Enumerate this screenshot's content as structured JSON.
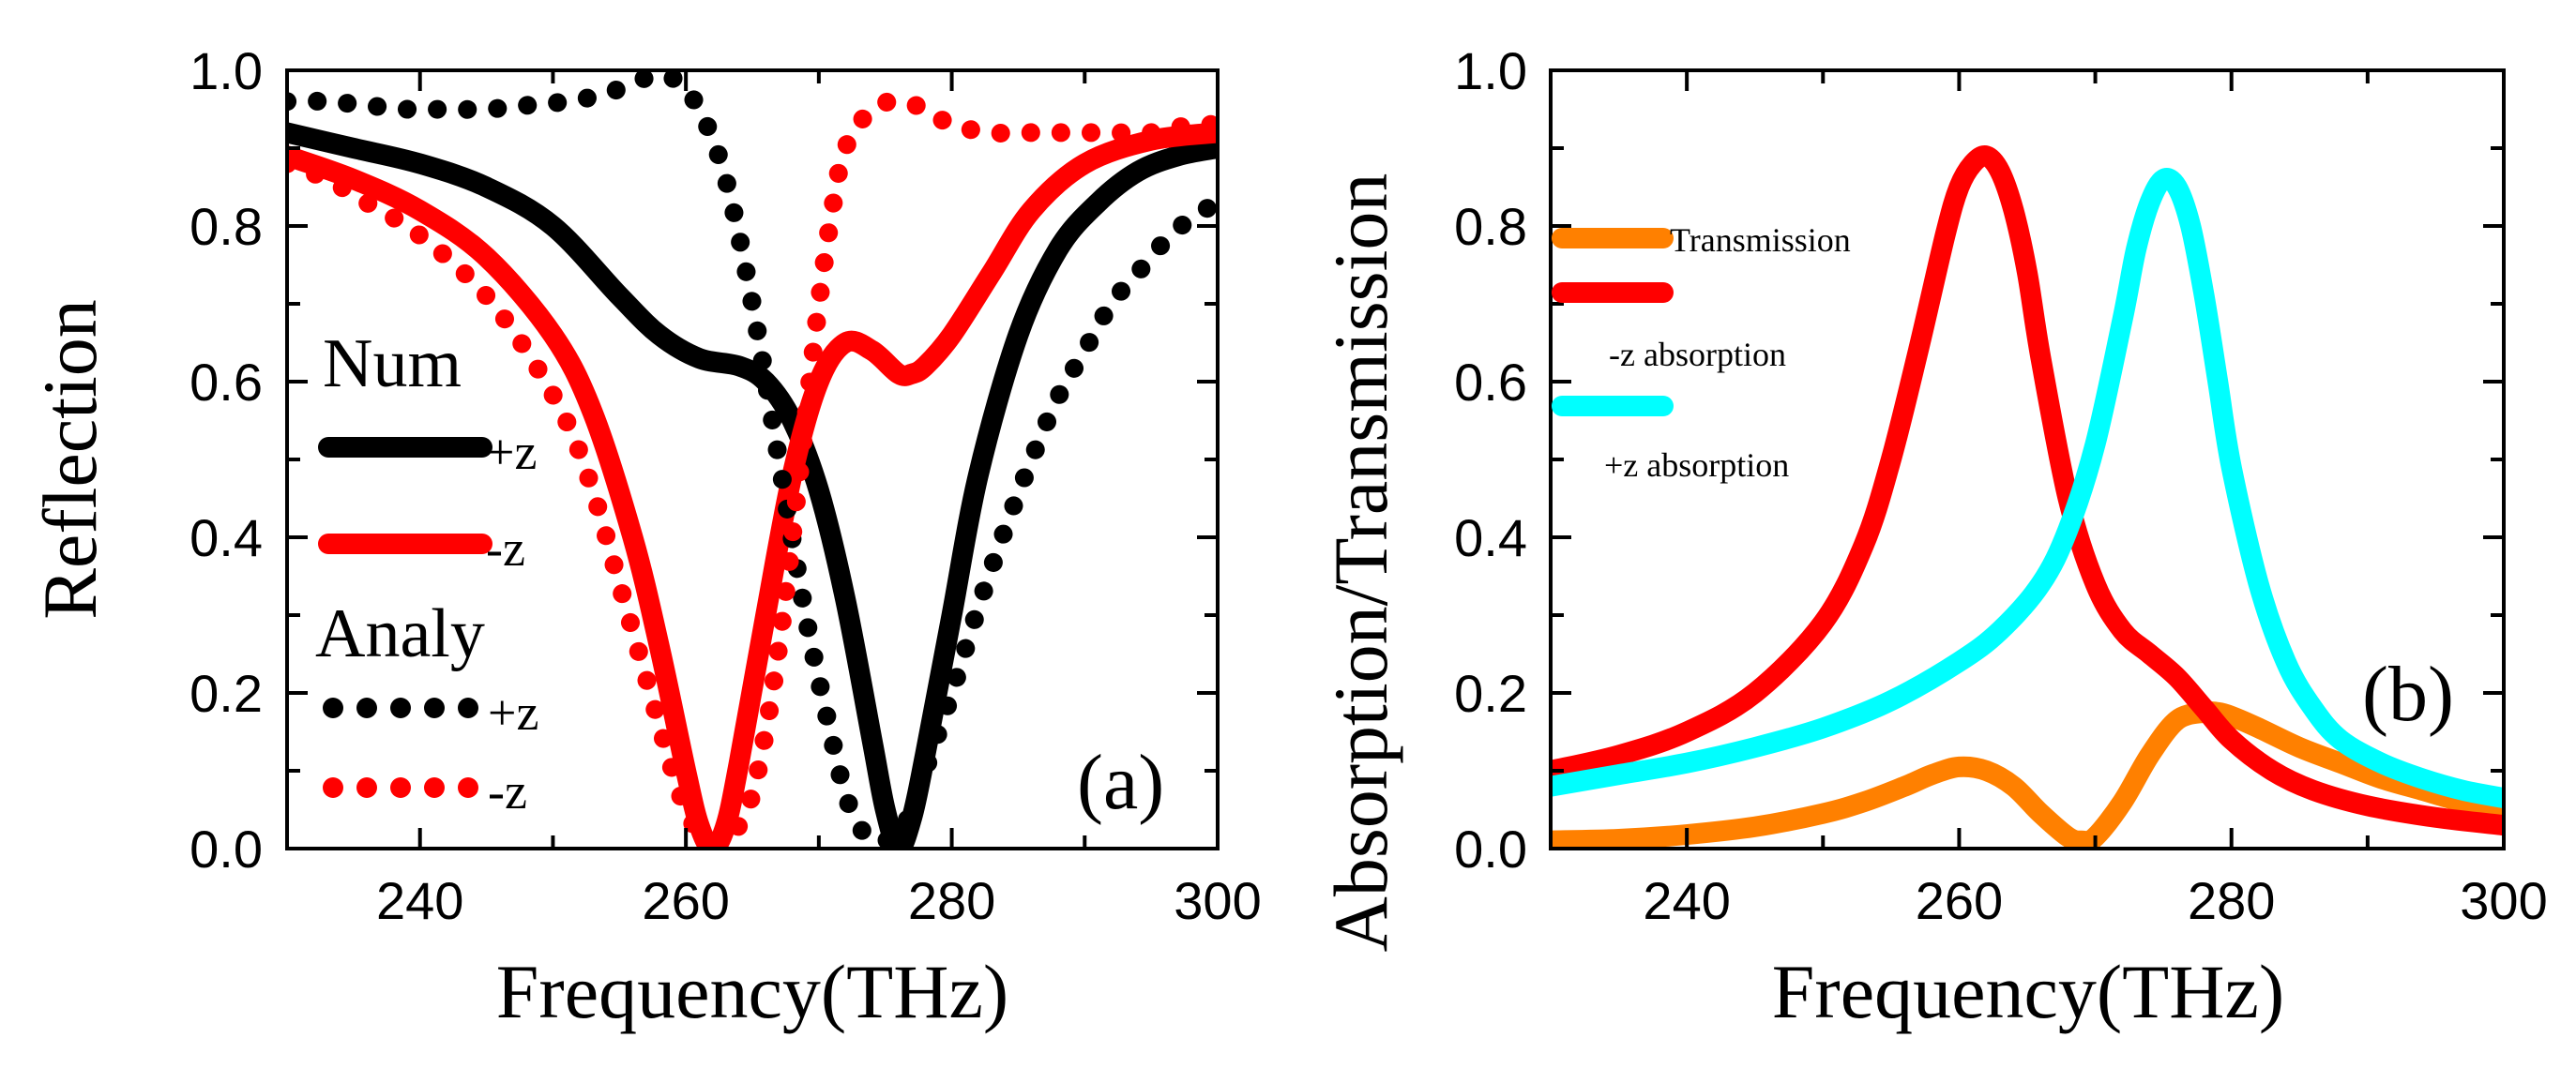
{
  "chart_data": [
    {
      "panel_label": "(a)",
      "type": "line",
      "xlabel": "Frequency(THz)",
      "ylabel": "Reflection",
      "xlim": [
        230,
        300
      ],
      "ylim": [
        0,
        1
      ],
      "xticks": [
        "240",
        "260",
        "280",
        "300"
      ],
      "yticks": [
        "0.0",
        "0.2",
        "0.4",
        "0.6",
        "0.8",
        "1.0"
      ],
      "legend": {
        "group1_title": "Num",
        "group2_title": "Analy",
        "entries": [
          "+z",
          "-z",
          "+z",
          "-z"
        ]
      },
      "series": [
        {
          "name": "Num +z",
          "style": "solid",
          "color": "#000000",
          "x": [
            230,
            235,
            240,
            245,
            250,
            255,
            258,
            261,
            264,
            266,
            268,
            270,
            272,
            274,
            275,
            276,
            277,
            278,
            280,
            282,
            285,
            288,
            291,
            294,
            297,
            300
          ],
          "y": [
            0.92,
            0.9,
            0.88,
            0.85,
            0.8,
            0.71,
            0.66,
            0.63,
            0.62,
            0.6,
            0.55,
            0.46,
            0.32,
            0.14,
            0.05,
            0.0,
            0.04,
            0.12,
            0.3,
            0.48,
            0.66,
            0.77,
            0.83,
            0.87,
            0.89,
            0.9
          ]
        },
        {
          "name": "Num -z",
          "style": "solid",
          "color": "#ff0000",
          "x": [
            230,
            235,
            240,
            245,
            250,
            253,
            256,
            258,
            260,
            261,
            262,
            263,
            264,
            266,
            268,
            270,
            272,
            274,
            276,
            277,
            278,
            280,
            283,
            286,
            290,
            295,
            300
          ],
          "y": [
            0.89,
            0.86,
            0.82,
            0.76,
            0.66,
            0.56,
            0.4,
            0.26,
            0.1,
            0.03,
            0.0,
            0.03,
            0.11,
            0.3,
            0.48,
            0.6,
            0.65,
            0.64,
            0.61,
            0.61,
            0.62,
            0.66,
            0.74,
            0.82,
            0.88,
            0.91,
            0.92
          ]
        },
        {
          "name": "Analy +z",
          "style": "dotted",
          "color": "#000000",
          "x": [
            230,
            233,
            236,
            239,
            242,
            245,
            248,
            251,
            254,
            257,
            259,
            261,
            263,
            265,
            267,
            269,
            271,
            272,
            273,
            274,
            275,
            276,
            277,
            278,
            280,
            282,
            284,
            286,
            288,
            290,
            292,
            294,
            296,
            298,
            300
          ],
          "y": [
            0.96,
            0.96,
            0.955,
            0.95,
            0.95,
            0.95,
            0.955,
            0.96,
            0.97,
            0.99,
            0.99,
            0.95,
            0.86,
            0.7,
            0.5,
            0.3,
            0.14,
            0.07,
            0.03,
            0.01,
            0.01,
            0.02,
            0.05,
            0.1,
            0.2,
            0.31,
            0.41,
            0.5,
            0.58,
            0.64,
            0.7,
            0.74,
            0.78,
            0.81,
            0.83
          ]
        },
        {
          "name": "Analy -z",
          "style": "dotted",
          "color": "#ff0000",
          "x": [
            230,
            233,
            236,
            239,
            242,
            245,
            248,
            251,
            253,
            255,
            257,
            259,
            260,
            261,
            262,
            263,
            264,
            265,
            266,
            267,
            268,
            269,
            270,
            271,
            272,
            274,
            276,
            278,
            280,
            283,
            286,
            289,
            292,
            295,
            298,
            300
          ],
          "y": [
            0.88,
            0.86,
            0.83,
            0.8,
            0.76,
            0.71,
            0.64,
            0.55,
            0.46,
            0.34,
            0.22,
            0.1,
            0.05,
            0.02,
            0.01,
            0.01,
            0.03,
            0.07,
            0.15,
            0.26,
            0.4,
            0.55,
            0.7,
            0.82,
            0.9,
            0.95,
            0.96,
            0.95,
            0.93,
            0.92,
            0.92,
            0.92,
            0.92,
            0.92,
            0.93,
            0.93
          ]
        }
      ]
    },
    {
      "panel_label": "(b)",
      "type": "line",
      "xlabel": "Frequency(THz)",
      "ylabel": "Absorption/Transmission",
      "xlim": [
        230,
        300
      ],
      "ylim": [
        0,
        1
      ],
      "xticks": [
        "240",
        "260",
        "280",
        "300"
      ],
      "yticks": [
        "0.0",
        "0.2",
        "0.4",
        "0.6",
        "0.8",
        "1.0"
      ],
      "legend": {
        "entries": [
          "Transmission",
          "-z absorption",
          "+z absorption"
        ]
      },
      "series": [
        {
          "name": "Transmission",
          "style": "solid",
          "color": "#ff8000",
          "x": [
            230,
            235,
            240,
            245,
            250,
            253,
            256,
            258,
            260,
            262,
            264,
            266,
            268,
            269,
            270,
            272,
            274,
            276,
            278,
            279,
            280,
            282,
            285,
            288,
            291,
            294,
            297,
            300
          ],
          "y": [
            0.01,
            0.012,
            0.018,
            0.028,
            0.045,
            0.06,
            0.08,
            0.095,
            0.105,
            0.1,
            0.08,
            0.045,
            0.015,
            0.01,
            0.015,
            0.06,
            0.12,
            0.165,
            0.175,
            0.175,
            0.17,
            0.155,
            0.13,
            0.11,
            0.09,
            0.075,
            0.06,
            0.05
          ]
        },
        {
          "name": "-z absorption",
          "style": "solid",
          "color": "#ff0000",
          "x": [
            230,
            235,
            240,
            245,
            250,
            253,
            255,
            257,
            259,
            260,
            261,
            262,
            263,
            264,
            265,
            266,
            268,
            270,
            272,
            274,
            276,
            278,
            280,
            283,
            286,
            290,
            295,
            300
          ],
          "y": [
            0.1,
            0.12,
            0.15,
            0.2,
            0.29,
            0.39,
            0.5,
            0.64,
            0.79,
            0.85,
            0.88,
            0.89,
            0.87,
            0.82,
            0.74,
            0.63,
            0.45,
            0.34,
            0.28,
            0.25,
            0.22,
            0.18,
            0.14,
            0.1,
            0.075,
            0.055,
            0.04,
            0.03
          ]
        },
        {
          "name": "+z absorption",
          "style": "solid",
          "color": "#00ffff",
          "x": [
            230,
            235,
            240,
            245,
            250,
            255,
            260,
            263,
            266,
            268,
            270,
            272,
            273,
            274,
            275,
            276,
            277,
            278,
            279,
            280,
            282,
            284,
            286,
            288,
            291,
            294,
            297,
            300
          ],
          "y": [
            0.08,
            0.095,
            0.11,
            0.13,
            0.155,
            0.19,
            0.24,
            0.28,
            0.34,
            0.41,
            0.52,
            0.68,
            0.77,
            0.83,
            0.86,
            0.85,
            0.8,
            0.71,
            0.6,
            0.49,
            0.34,
            0.24,
            0.18,
            0.14,
            0.11,
            0.09,
            0.075,
            0.065
          ]
        }
      ]
    }
  ]
}
